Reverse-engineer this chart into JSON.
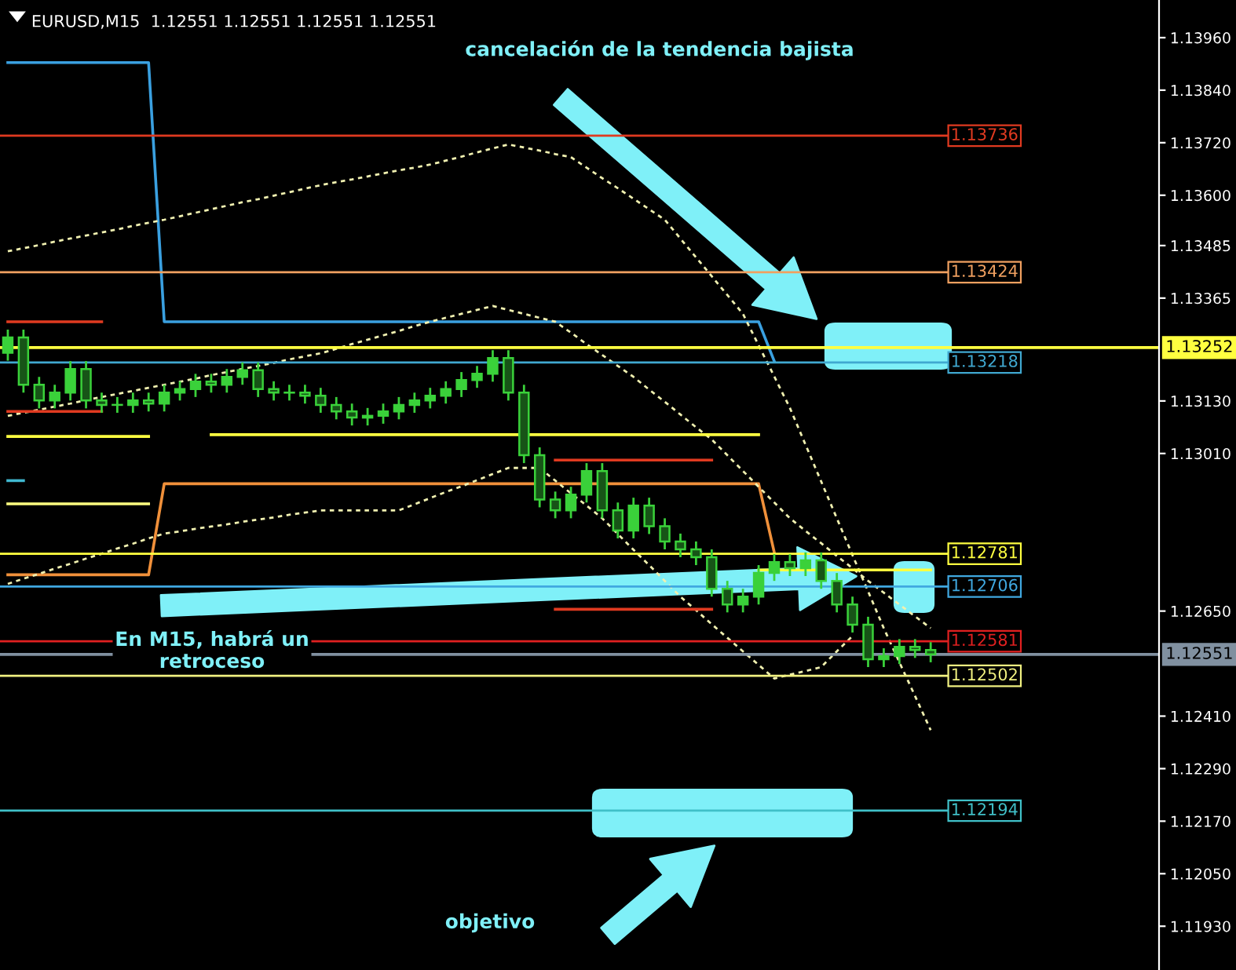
{
  "chart_data": {
    "type": "candlestick",
    "title": "EURUSD,M15  1.12551 1.12551 1.12551 1.12551",
    "annotations": [
      "cancelación de la tendencia bajista",
      "En M15, habrá un\nretroceso",
      "objetivo"
    ],
    "color": "#3ad13a",
    "categories": [
      null,
      null,
      null,
      null,
      null,
      null,
      null,
      null,
      null,
      null,
      null,
      null,
      null,
      null,
      null,
      null,
      null,
      null,
      null,
      null,
      null,
      null,
      null,
      null,
      null,
      null,
      null,
      null,
      null,
      null,
      null,
      null,
      null,
      null,
      null,
      null,
      null,
      null,
      null,
      null,
      null,
      null,
      null,
      null,
      null,
      null,
      null,
      null,
      null,
      null,
      null,
      null,
      null,
      null,
      null,
      null,
      null,
      null,
      null,
      null
    ],
    "ohlc": [
      [
        1.1324,
        1.13293,
        1.13222,
        1.13275
      ],
      [
        1.13275,
        1.13293,
        1.13149,
        1.13167
      ],
      [
        1.13167,
        1.13185,
        1.13113,
        1.13131
      ],
      [
        1.13131,
        1.13167,
        1.13113,
        1.13149
      ],
      [
        1.13149,
        1.13221,
        1.13131,
        1.13203
      ],
      [
        1.13203,
        1.13221,
        1.13113,
        1.13131
      ],
      [
        1.13131,
        1.13149,
        1.13103,
        1.13121
      ],
      [
        1.13121,
        1.13139,
        1.13103,
        1.13121
      ],
      [
        1.13121,
        1.13149,
        1.13103,
        1.13131
      ],
      [
        1.13131,
        1.13149,
        1.13106,
        1.13124
      ],
      [
        1.13124,
        1.13167,
        1.13106,
        1.13149
      ],
      [
        1.13149,
        1.13175,
        1.13131,
        1.13157
      ],
      [
        1.13157,
        1.13192,
        1.13139,
        1.13174
      ],
      [
        1.13174,
        1.13192,
        1.13149,
        1.13167
      ],
      [
        1.13167,
        1.13203,
        1.13149,
        1.13185
      ],
      [
        1.13185,
        1.13218,
        1.13167,
        1.132
      ],
      [
        1.132,
        1.13218,
        1.13139,
        1.13157
      ],
      [
        1.13157,
        1.13175,
        1.13131,
        1.13149
      ],
      [
        1.13149,
        1.13167,
        1.13131,
        1.13149
      ],
      [
        1.13149,
        1.13167,
        1.13124,
        1.13142
      ],
      [
        1.13142,
        1.1316,
        1.13103,
        1.13121
      ],
      [
        1.13121,
        1.13139,
        1.13088,
        1.13106
      ],
      [
        1.13106,
        1.13124,
        1.13074,
        1.13092
      ],
      [
        1.13092,
        1.13114,
        1.13074,
        1.13096
      ],
      [
        1.13096,
        1.13124,
        1.13078,
        1.13106
      ],
      [
        1.13106,
        1.13139,
        1.13088,
        1.13121
      ],
      [
        1.13121,
        1.13149,
        1.13103,
        1.13131
      ],
      [
        1.13131,
        1.1316,
        1.13113,
        1.13142
      ],
      [
        1.13142,
        1.13175,
        1.13124,
        1.13157
      ],
      [
        1.13157,
        1.13196,
        1.13139,
        1.13178
      ],
      [
        1.13178,
        1.1321,
        1.1316,
        1.13192
      ],
      [
        1.13192,
        1.13246,
        1.13174,
        1.13228
      ],
      [
        1.13228,
        1.13246,
        1.13131,
        1.13149
      ],
      [
        1.13149,
        1.13167,
        1.12988,
        1.13006
      ],
      [
        1.13006,
        1.13024,
        1.12887,
        1.12905
      ],
      [
        1.12905,
        1.12923,
        1.12862,
        1.1288
      ],
      [
        1.1288,
        1.12934,
        1.12862,
        1.12916
      ],
      [
        1.12916,
        1.12988,
        1.12898,
        1.1297
      ],
      [
        1.1297,
        1.12988,
        1.12862,
        1.1288
      ],
      [
        1.1288,
        1.12898,
        1.12816,
        1.12834
      ],
      [
        1.12834,
        1.12909,
        1.12816,
        1.12891
      ],
      [
        1.12891,
        1.12909,
        1.12826,
        1.12844
      ],
      [
        1.12844,
        1.12862,
        1.12791,
        1.12809
      ],
      [
        1.12809,
        1.12827,
        1.12773,
        1.12791
      ],
      [
        1.12791,
        1.12809,
        1.12755,
        1.12773
      ],
      [
        1.12773,
        1.12791,
        1.12683,
        1.12701
      ],
      [
        1.12701,
        1.12719,
        1.12647,
        1.12665
      ],
      [
        1.12665,
        1.12701,
        1.12647,
        1.12683
      ],
      [
        1.12683,
        1.12755,
        1.12665,
        1.12737
      ],
      [
        1.12737,
        1.1278,
        1.12719,
        1.12762
      ],
      [
        1.12762,
        1.1278,
        1.1273,
        1.12748
      ],
      [
        1.12748,
        1.12784,
        1.1273,
        1.12766
      ],
      [
        1.12766,
        1.12784,
        1.12701,
        1.12719
      ],
      [
        1.12719,
        1.12737,
        1.12647,
        1.12665
      ],
      [
        1.12665,
        1.12683,
        1.12601,
        1.12619
      ],
      [
        1.12619,
        1.12637,
        1.12522,
        1.1254
      ],
      [
        1.1254,
        1.12565,
        1.12522,
        1.12547
      ],
      [
        1.12547,
        1.12586,
        1.12529,
        1.12568
      ],
      [
        1.12568,
        1.12586,
        1.12543,
        1.12561
      ],
      [
        1.12561,
        1.12579,
        1.12533,
        1.12551
      ]
    ],
    "series": [
      {
        "type": "line",
        "color": "#3aa0e0",
        "line_style": "solid",
        "values": [
          1.13903,
          1.13903,
          1.13903,
          1.13903,
          1.13903,
          1.13903,
          1.13903,
          1.13903,
          1.13903,
          1.13903,
          1.13311,
          1.13311,
          1.13311,
          1.13311,
          1.13311,
          1.13311,
          1.13311,
          1.13311,
          1.13311,
          1.13311,
          1.13311,
          1.13311,
          1.13311,
          1.13311,
          1.13311,
          1.13311,
          1.13311,
          1.13311,
          1.13311,
          1.13311,
          1.13311,
          1.13311,
          1.13311,
          1.13311,
          1.13311,
          1.13311,
          1.13311,
          1.13311,
          1.13311,
          1.13311,
          1.13311,
          1.13311,
          1.13311,
          1.13311,
          1.13311,
          1.13311,
          1.13311,
          1.13311,
          1.13311,
          1.13221,
          null,
          null,
          null,
          null,
          null,
          null,
          null,
          null,
          null,
          null
        ]
      },
      {
        "type": "line",
        "color": "#f0903a",
        "line_style": "solid",
        "values": [
          1.12733,
          1.12733,
          1.12733,
          1.12733,
          1.12733,
          1.12733,
          1.12733,
          1.12733,
          1.12733,
          1.12733,
          1.12941,
          1.12941,
          1.12941,
          1.12941,
          1.12941,
          1.12941,
          1.12941,
          1.12941,
          1.12941,
          1.12941,
          1.12941,
          1.12941,
          1.12941,
          1.12941,
          1.12941,
          1.12941,
          1.12941,
          1.12941,
          1.12941,
          1.12941,
          1.12941,
          1.12941,
          1.12941,
          1.12941,
          1.12941,
          1.12941,
          1.12941,
          1.12941,
          1.12941,
          1.12941,
          1.12941,
          1.12941,
          1.12941,
          1.12941,
          1.12941,
          1.12941,
          1.12941,
          1.12941,
          1.12941,
          1.12784,
          null,
          null,
          null,
          null,
          null,
          null,
          null,
          null,
          null,
          null
        ]
      },
      {
        "type": "line",
        "color": "#f0f0b0",
        "line_style": "dotted",
        "values": [
          1.13472,
          1.13479,
          1.13486,
          1.13494,
          1.13501,
          1.13508,
          1.13515,
          1.13522,
          1.1353,
          1.13537,
          1.13544,
          1.13552,
          1.1356,
          1.13568,
          1.13576,
          1.13584,
          1.13591,
          1.13599,
          1.13607,
          1.13615,
          1.13623,
          1.1363,
          1.13636,
          1.13643,
          1.1365,
          1.13657,
          1.13663,
          1.1367,
          1.13679,
          1.13688,
          1.13698,
          1.13707,
          1.13716,
          1.13709,
          1.13702,
          1.13694,
          1.13687,
          1.13663,
          1.13639,
          1.13616,
          1.13592,
          1.13568,
          1.13544,
          1.13501,
          1.13458,
          1.13415,
          1.13372,
          1.13329,
          1.13257,
          1.13186,
          1.13114,
          1.1303,
          1.12946,
          1.12862,
          1.12778,
          1.12695,
          1.12611,
          1.12533,
          1.12456,
          1.12378
        ]
      },
      {
        "type": "line",
        "color": "#f0f0b0",
        "line_style": "dotted",
        "values": [
          1.13096,
          1.13103,
          1.1311,
          1.13117,
          1.13124,
          1.13132,
          1.13139,
          1.13146,
          1.13153,
          1.1316,
          1.13167,
          1.13174,
          1.13181,
          1.13189,
          1.13196,
          1.13203,
          1.1321,
          1.13217,
          1.13225,
          1.13232,
          1.13239,
          1.13249,
          1.1326,
          1.1327,
          1.1328,
          1.1329,
          1.13301,
          1.13311,
          1.1332,
          1.13329,
          1.13338,
          1.13347,
          1.13338,
          1.13329,
          1.1332,
          1.13311,
          1.13286,
          1.1326,
          1.13235,
          1.1321,
          1.13185,
          1.13156,
          1.13128,
          1.13099,
          1.1307,
          1.13042,
          1.13006,
          1.1297,
          1.12934,
          1.12898,
          1.12862,
          1.12833,
          1.12805,
          1.12776,
          1.12748,
          1.12719,
          1.12692,
          1.12665,
          1.12638,
          1.12611
        ]
      },
      {
        "type": "line",
        "color": "#f0f0b0",
        "line_style": "dotted",
        "values": [
          1.12712,
          1.12724,
          1.12735,
          1.12747,
          1.12758,
          1.1277,
          1.12781,
          1.12793,
          1.12804,
          1.12816,
          1.12827,
          1.12832,
          1.12838,
          1.12843,
          1.12848,
          1.12854,
          1.12859,
          1.12864,
          1.1287,
          1.12875,
          1.1288,
          1.1288,
          1.1288,
          1.1288,
          1.1288,
          1.1288,
          1.12894,
          1.12908,
          1.12922,
          1.12935,
          1.12949,
          1.12963,
          1.12977,
          1.12977,
          1.12977,
          1.12948,
          1.12919,
          1.12891,
          1.12862,
          1.12826,
          1.1279,
          1.12755,
          1.12719,
          1.12683,
          1.12652,
          1.1262,
          1.12589,
          1.12558,
          1.12527,
          1.12496,
          1.12505,
          1.12513,
          1.12522,
          1.12558,
          1.12593,
          null,
          null,
          null,
          null,
          null
        ]
      },
      {
        "type": "line",
        "color": "#e03a20",
        "line_style": "solid",
        "values": [
          1.13311,
          1.13311,
          1.13311,
          1.13311,
          1.13311,
          1.13311,
          1.13311,
          null,
          null,
          null,
          null,
          null,
          null,
          null,
          null,
          null,
          null,
          null,
          null,
          null,
          null,
          null,
          null,
          null,
          null,
          null,
          null,
          null,
          null,
          null,
          null,
          null,
          null,
          null,
          null,
          null,
          null,
          null,
          null,
          null,
          null,
          null,
          null,
          null,
          null,
          null,
          null,
          null,
          null,
          null,
          null,
          null,
          null,
          null,
          null,
          null,
          null,
          null,
          null,
          null
        ]
      },
      {
        "type": "line",
        "color": "#e03a20",
        "line_style": "solid",
        "values": [
          1.13106,
          1.13106,
          1.13106,
          1.13106,
          1.13106,
          1.13106,
          1.13106,
          null,
          null,
          null,
          null,
          null,
          null,
          null,
          null,
          null,
          null,
          null,
          null,
          null,
          null,
          null,
          null,
          null,
          null,
          null,
          null,
          null,
          null,
          null,
          null,
          null,
          null,
          null,
          null,
          null,
          null,
          null,
          null,
          null,
          null,
          null,
          null,
          null,
          null,
          null,
          null,
          null,
          null,
          null,
          null,
          null,
          null,
          null,
          null,
          null,
          null,
          null,
          null,
          null
        ]
      },
      {
        "type": "line",
        "color": "#ffff40",
        "line_style": "solid",
        "values": [
          1.13049,
          1.13049,
          1.13049,
          1.13049,
          1.13049,
          1.13049,
          1.13049,
          1.13049,
          1.13049,
          1.13049,
          null,
          null,
          null,
          null,
          null,
          null,
          null,
          null,
          null,
          null,
          null,
          null,
          null,
          null,
          null,
          null,
          null,
          null,
          null,
          null,
          null,
          null,
          null,
          null,
          null,
          null,
          null,
          null,
          null,
          null,
          null,
          null,
          null,
          null,
          null,
          null,
          null,
          null,
          null,
          null,
          null,
          null,
          null,
          null,
          null,
          null,
          null,
          null,
          null,
          null
        ]
      },
      {
        "type": "line",
        "color": "#ffff40",
        "line_style": "solid",
        "values": [
          null,
          null,
          null,
          null,
          null,
          null,
          null,
          null,
          null,
          null,
          null,
          null,
          null,
          1.13053,
          1.13053,
          1.13053,
          1.13053,
          1.13053,
          1.13053,
          1.13053,
          1.13053,
          1.13053,
          1.13053,
          1.13053,
          1.13053,
          1.13053,
          1.13053,
          1.13053,
          1.13053,
          1.13053,
          1.13053,
          1.13053,
          1.13053,
          1.13053,
          1.13053,
          1.13053,
          1.13053,
          1.13053,
          1.13053,
          1.13053,
          1.13053,
          1.13053,
          1.13053,
          1.13053,
          1.13053,
          1.13053,
          1.13053,
          1.13053,
          1.13053,
          null,
          null,
          null,
          null,
          null,
          null,
          null,
          null,
          null,
          null,
          null
        ]
      },
      {
        "type": "line",
        "color": "#ffff80",
        "line_style": "solid",
        "values": [
          1.12895,
          1.12895,
          1.12895,
          1.12895,
          1.12895,
          1.12895,
          1.12895,
          1.12895,
          1.12895,
          1.12895,
          null,
          null,
          null,
          null,
          null,
          null,
          null,
          null,
          null,
          null,
          null,
          null,
          null,
          null,
          null,
          null,
          null,
          null,
          null,
          null,
          null,
          null,
          null,
          null,
          null,
          null,
          null,
          null,
          null,
          null,
          null,
          null,
          null,
          null,
          null,
          null,
          null,
          null,
          null,
          null,
          null,
          null,
          null,
          null,
          null,
          null,
          null,
          null,
          null,
          null
        ]
      },
      {
        "type": "line",
        "color": "#40b8d0",
        "line_style": "solid",
        "values": [
          1.12948,
          1.12948,
          null,
          null,
          null,
          null,
          null,
          null,
          null,
          null,
          null,
          null,
          null,
          null,
          null,
          null,
          null,
          null,
          null,
          null,
          null,
          null,
          null,
          null,
          null,
          null,
          null,
          null,
          null,
          null,
          null,
          null,
          null,
          null,
          null,
          null,
          null,
          null,
          null,
          null,
          null,
          null,
          null,
          null,
          null,
          null,
          null,
          null,
          null,
          null,
          null,
          null,
          null,
          null,
          null,
          null,
          null,
          null,
          null,
          null
        ]
      },
      {
        "type": "line",
        "color": "#e03a20",
        "line_style": "solid",
        "values": [
          null,
          null,
          null,
          null,
          null,
          null,
          null,
          null,
          null,
          null,
          null,
          null,
          null,
          null,
          null,
          null,
          null,
          null,
          null,
          null,
          null,
          null,
          null,
          null,
          null,
          null,
          null,
          null,
          null,
          null,
          null,
          null,
          null,
          null,
          null,
          1.12995,
          1.12995,
          1.12995,
          1.12995,
          1.12995,
          1.12995,
          1.12995,
          1.12995,
          1.12995,
          1.12995,
          1.12995,
          null,
          null,
          null,
          null,
          null,
          null,
          null,
          null,
          null,
          null,
          null,
          null,
          null,
          null
        ]
      },
      {
        "type": "line",
        "color": "#e03a20",
        "line_style": "solid",
        "values": [
          null,
          null,
          null,
          null,
          null,
          null,
          null,
          null,
          null,
          null,
          null,
          null,
          null,
          null,
          null,
          null,
          null,
          null,
          null,
          null,
          null,
          null,
          null,
          null,
          null,
          null,
          null,
          null,
          null,
          null,
          null,
          null,
          null,
          null,
          null,
          1.12654,
          1.12654,
          1.12654,
          1.12654,
          1.12654,
          1.12654,
          1.12654,
          1.12654,
          1.12654,
          1.12654,
          1.12654,
          null,
          null,
          null,
          null,
          null,
          null,
          null,
          null,
          null,
          null,
          null,
          null,
          null,
          null
        ]
      },
      {
        "type": "line",
        "color": "#ffff40",
        "line_style": "solid",
        "values": [
          null,
          null,
          null,
          null,
          null,
          null,
          null,
          null,
          null,
          null,
          null,
          null,
          null,
          null,
          null,
          null,
          null,
          null,
          null,
          null,
          null,
          null,
          null,
          null,
          null,
          null,
          null,
          null,
          null,
          null,
          null,
          null,
          null,
          null,
          null,
          null,
          null,
          null,
          null,
          null,
          null,
          null,
          null,
          null,
          null,
          null,
          null,
          null,
          1.12744,
          1.12744,
          1.12744,
          1.12744,
          1.12744,
          1.12744,
          1.12744,
          1.12744,
          1.12744,
          1.12744,
          1.12744,
          1.12744
        ]
      }
    ],
    "ref_lines": [
      {
        "axis": "y",
        "value": 1.13736,
        "label": "1.13736",
        "color": "#e03a20"
      },
      {
        "axis": "y",
        "value": 1.13424,
        "label": "1.13424",
        "color": "#f0a060"
      },
      {
        "axis": "y",
        "value": 1.13218,
        "label": "1.13218",
        "color": "#40a8d0"
      },
      {
        "axis": "y",
        "value": 1.13252,
        "label": "1.13252",
        "color": "#ffff40"
      },
      {
        "axis": "y",
        "value": 1.12781,
        "label": "1.12781",
        "color": "#ffff40"
      },
      {
        "axis": "y",
        "value": 1.12706,
        "label": "1.12706",
        "color": "#40a8e0"
      },
      {
        "axis": "y",
        "value": 1.12502,
        "label": "1.12502",
        "color": "#f0f080"
      },
      {
        "axis": "y",
        "value": 1.12581,
        "label": "1.12581",
        "color": "#e02020"
      },
      {
        "axis": "y",
        "value": 1.12551,
        "label": "1.12551",
        "color": "#8090a0"
      },
      {
        "axis": "y",
        "value": 1.12194,
        "label": "1.12194",
        "color": "#40c0c8"
      }
    ],
    "ylim": [
      1.1183,
      1.14046
    ],
    "yticks": [
      {
        "value": 1.1193,
        "label": "1.11930"
      },
      {
        "value": 1.1205,
        "label": "1.12050"
      },
      {
        "value": 1.1217,
        "label": "1.12170"
      },
      {
        "value": 1.1229,
        "label": "1.12290"
      },
      {
        "value": 1.1241,
        "label": "1.12410"
      },
      {
        "value": 1.1265,
        "label": "1.12650"
      },
      {
        "value": 1.1301,
        "label": "1.13010"
      },
      {
        "value": 1.1313,
        "label": "1.13130"
      },
      {
        "value": 1.13365,
        "label": "1.13365"
      },
      {
        "value": 1.13485,
        "label": "1.13485"
      },
      {
        "value": 1.136,
        "label": "1.13600"
      },
      {
        "value": 1.1372,
        "label": "1.13720"
      },
      {
        "value": 1.1384,
        "label": "1.13840"
      },
      {
        "value": 1.1396,
        "label": "1.13960"
      }
    ],
    "tick_labels": "y"
  }
}
